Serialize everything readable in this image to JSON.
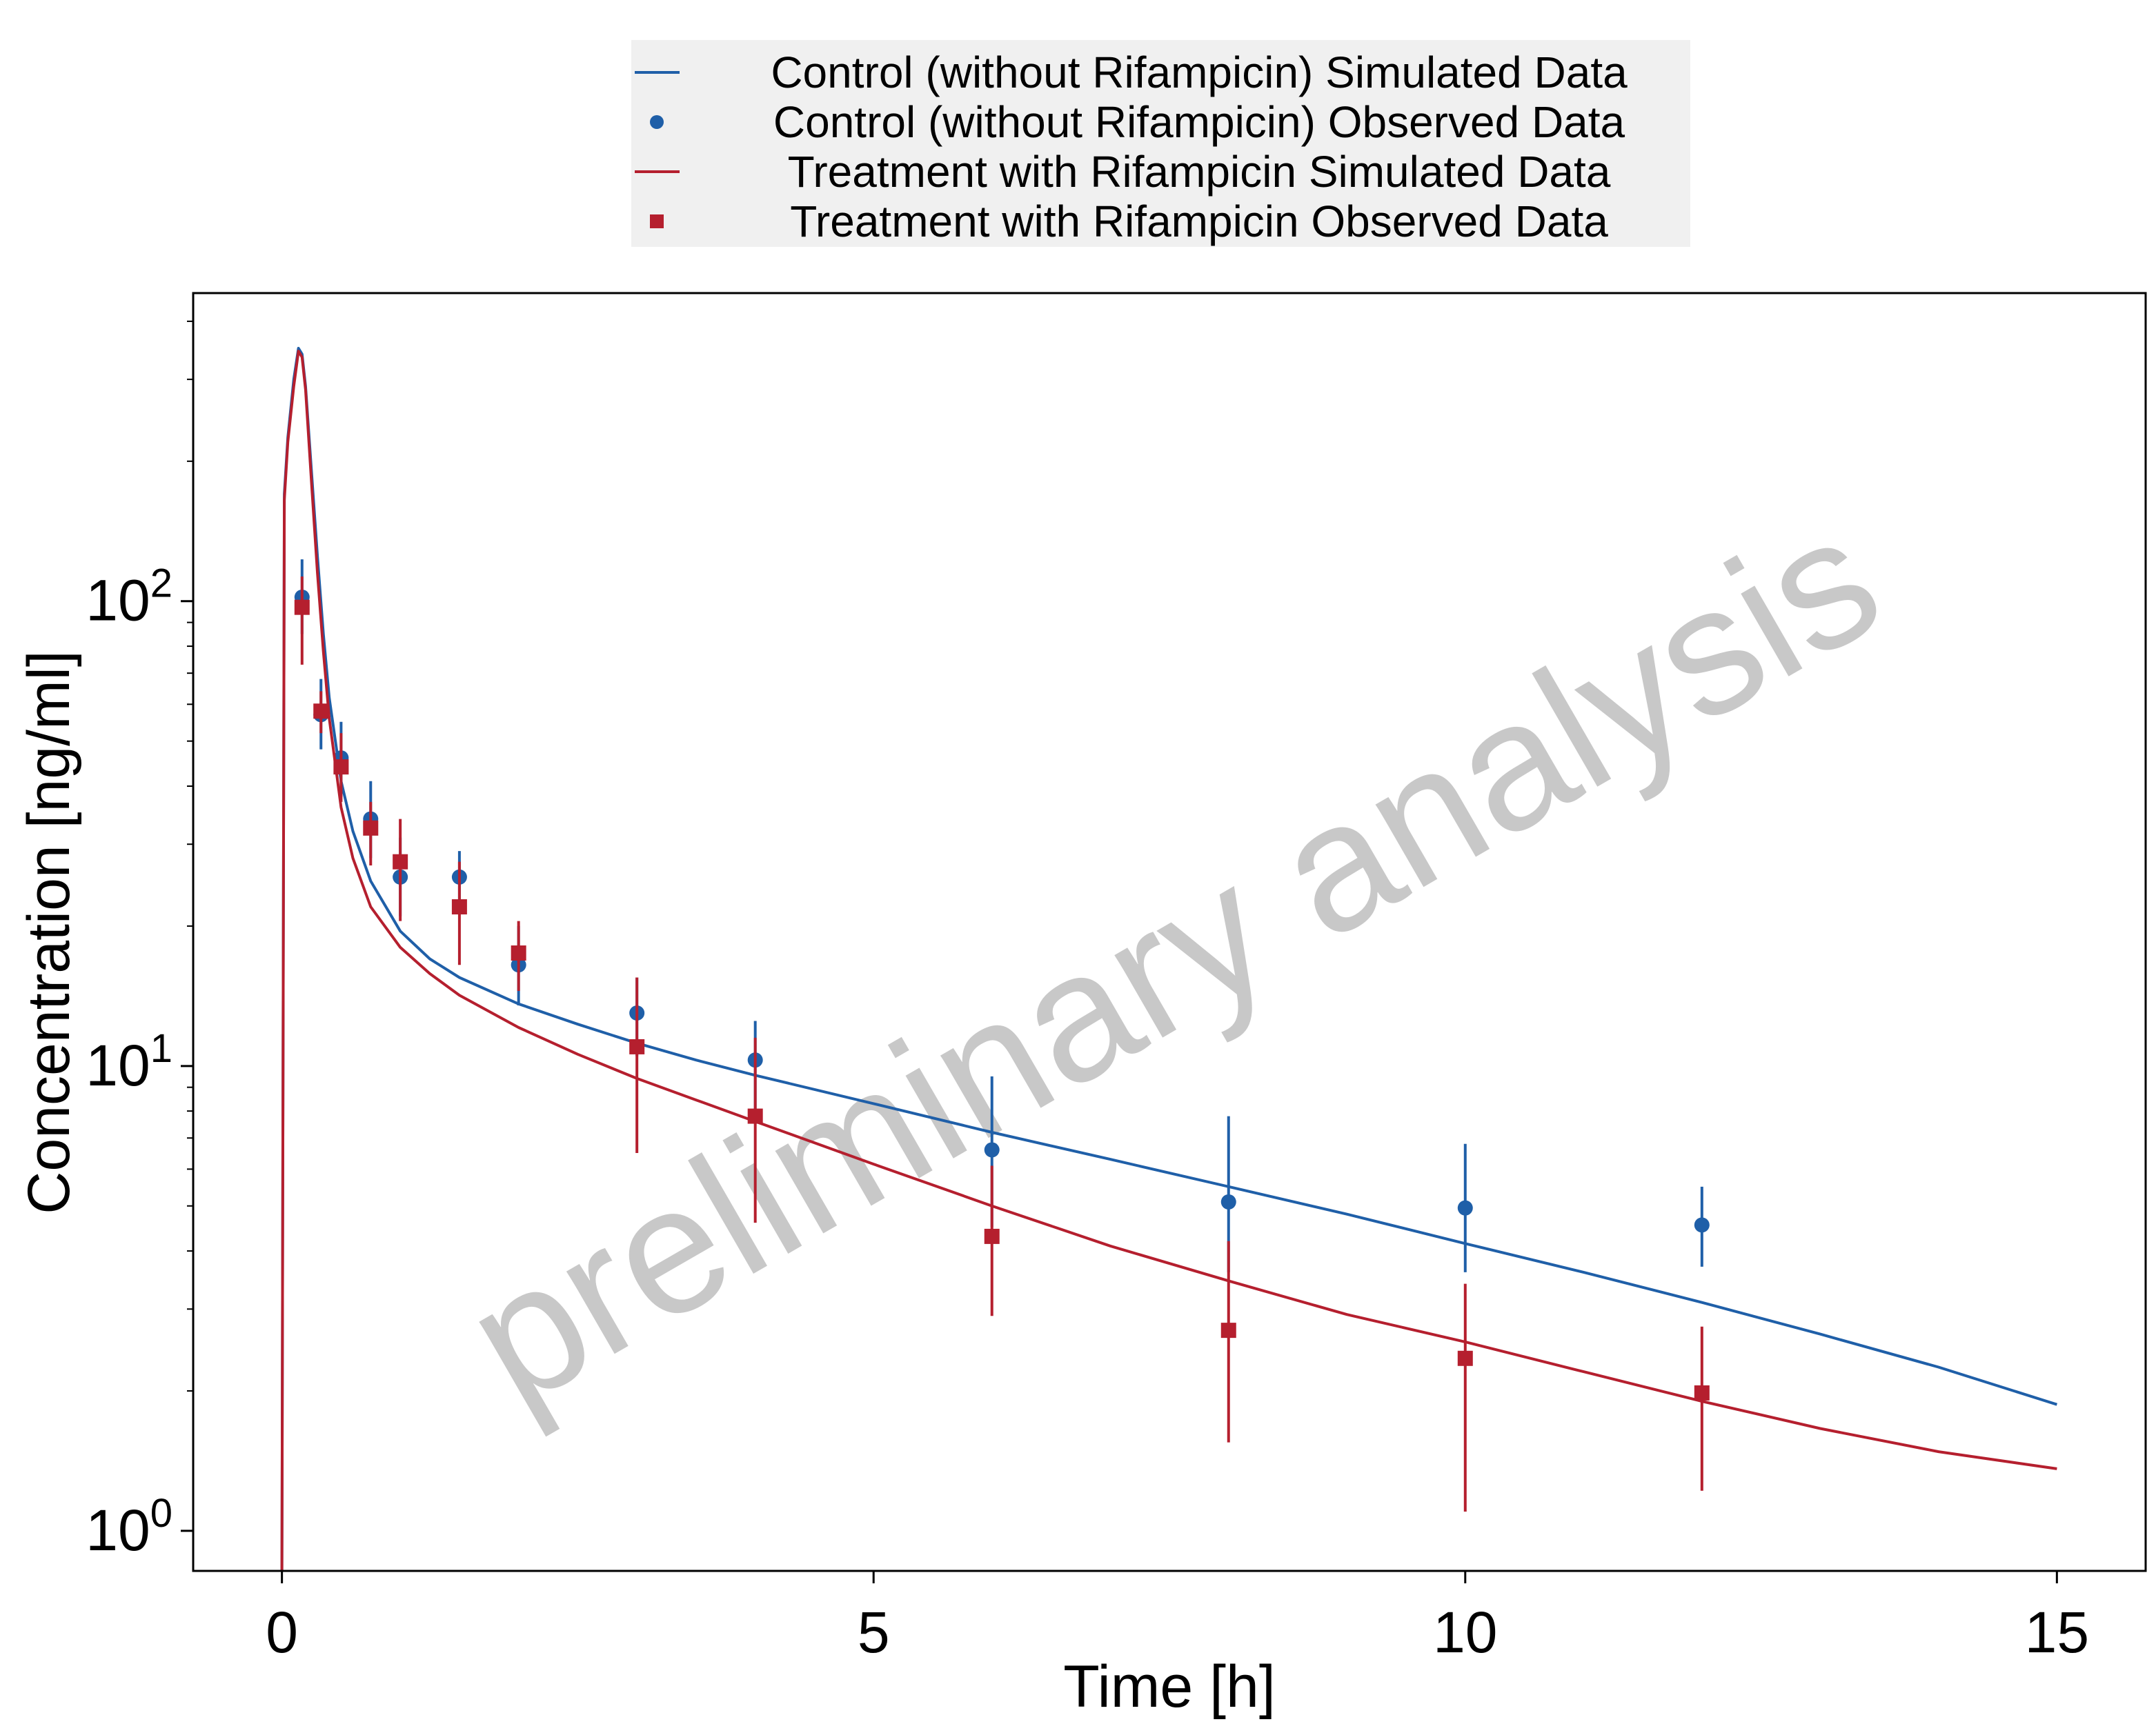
{
  "chart_data": {
    "type": "line",
    "xlabel": "Time [h]",
    "ylabel": "Concentration [ng/ml]",
    "xlim": [
      -0.75,
      15.75
    ],
    "ylim": [
      0.82,
      460
    ],
    "y_scale": "log",
    "grid": false,
    "legend_position": "top",
    "watermark": "preliminary analysis",
    "x_ticks": [
      0,
      5,
      10,
      15
    ],
    "x_tick_labels": [
      "0",
      "5",
      "10",
      "15"
    ],
    "y_ticks": [
      {
        "value": 1,
        "base": "10",
        "exp": "0"
      },
      {
        "value": 10,
        "base": "10",
        "exp": "1"
      },
      {
        "value": 100,
        "base": "10",
        "exp": "2"
      }
    ],
    "series": [
      {
        "name": "Control (without Rifampicin) Simulated Data",
        "kind": "line",
        "color": "#1f5fa8",
        "x": [
          0,
          0.02,
          0.05,
          0.1,
          0.14,
          0.17,
          0.2,
          0.25,
          0.3,
          0.35,
          0.4,
          0.5,
          0.6,
          0.75,
          1.0,
          1.25,
          1.5,
          2.0,
          2.5,
          3.0,
          3.5,
          4.0,
          5.0,
          6.0,
          7.0,
          8.0,
          9.0,
          10.0,
          11.0,
          12.0,
          13.0,
          14.0,
          15.0
        ],
        "y": [
          0.82,
          170,
          225,
          300,
          350,
          340,
          290,
          190,
          125,
          85,
          62,
          41,
          32,
          25,
          19.5,
          17.0,
          15.5,
          13.6,
          12.3,
          11.2,
          10.3,
          9.55,
          8.3,
          7.2,
          6.3,
          5.5,
          4.8,
          4.15,
          3.6,
          3.1,
          2.65,
          2.25,
          1.87
        ]
      },
      {
        "name": "Control (without Rifampicin) Observed Data",
        "kind": "scatter",
        "marker": "circle",
        "color": "#1f5fa8",
        "points": [
          {
            "x": 0.17,
            "y": 102,
            "lo": 85,
            "hi": 123
          },
          {
            "x": 0.33,
            "y": 57,
            "lo": 48,
            "hi": 68
          },
          {
            "x": 0.5,
            "y": 46,
            "lo": 38,
            "hi": 55
          },
          {
            "x": 0.75,
            "y": 34,
            "lo": 28,
            "hi": 41
          },
          {
            "x": 1.0,
            "y": 25.5,
            "lo": 21,
            "hi": 31
          },
          {
            "x": 1.5,
            "y": 25.5,
            "lo": 22,
            "hi": 29
          },
          {
            "x": 2.0,
            "y": 16.5,
            "lo": 13.5,
            "hi": 20
          },
          {
            "x": 3.0,
            "y": 13,
            "lo": 10.5,
            "hi": 15.5
          },
          {
            "x": 4.0,
            "y": 10.3,
            "lo": 8,
            "hi": 12.5
          },
          {
            "x": 6.0,
            "y": 6.6,
            "lo": 4.5,
            "hi": 9.5
          },
          {
            "x": 8.0,
            "y": 5.1,
            "lo": 3.6,
            "hi": 7.8
          },
          {
            "x": 10.0,
            "y": 4.95,
            "lo": 3.6,
            "hi": 6.8
          },
          {
            "x": 12.0,
            "y": 4.55,
            "lo": 3.7,
            "hi": 5.5
          }
        ]
      },
      {
        "name": "Treatment with Rifampicin Simulated Data",
        "kind": "line",
        "color": "#b51f2e",
        "x": [
          0,
          0.02,
          0.05,
          0.1,
          0.14,
          0.17,
          0.2,
          0.25,
          0.3,
          0.35,
          0.4,
          0.5,
          0.6,
          0.75,
          1.0,
          1.25,
          1.5,
          2.0,
          2.5,
          3.0,
          3.5,
          4.0,
          5.0,
          6.0,
          7.0,
          8.0,
          9.0,
          10.0,
          11.0,
          12.0,
          13.0,
          14.0,
          15.0
        ],
        "y": [
          0.82,
          165,
          220,
          290,
          345,
          335,
          285,
          180,
          115,
          78,
          56,
          36,
          28,
          22,
          18.0,
          15.8,
          14.2,
          12.1,
          10.6,
          9.4,
          8.45,
          7.6,
          6.15,
          5.0,
          4.1,
          3.45,
          2.92,
          2.55,
          2.2,
          1.9,
          1.66,
          1.48,
          1.36
        ]
      },
      {
        "name": "Treatment with Rifampicin Observed Data",
        "kind": "scatter",
        "marker": "square",
        "color": "#b51f2e",
        "points": [
          {
            "x": 0.17,
            "y": 97,
            "lo": 73,
            "hi": 113
          },
          {
            "x": 0.33,
            "y": 58,
            "lo": 52,
            "hi": 64
          },
          {
            "x": 0.5,
            "y": 44,
            "lo": 37,
            "hi": 52
          },
          {
            "x": 0.75,
            "y": 32.5,
            "lo": 27,
            "hi": 37
          },
          {
            "x": 1.0,
            "y": 27.5,
            "lo": 20.5,
            "hi": 34
          },
          {
            "x": 1.5,
            "y": 22,
            "lo": 16.5,
            "hi": 27.5
          },
          {
            "x": 2.0,
            "y": 17.5,
            "lo": 14.5,
            "hi": 20.5
          },
          {
            "x": 3.0,
            "y": 11,
            "lo": 6.5,
            "hi": 15.5
          },
          {
            "x": 4.0,
            "y": 7.8,
            "lo": 4.6,
            "hi": 11.5
          },
          {
            "x": 6.0,
            "y": 4.3,
            "lo": 2.9,
            "hi": 6.1
          },
          {
            "x": 8.0,
            "y": 2.7,
            "lo": 1.55,
            "hi": 4.2
          },
          {
            "x": 10.0,
            "y": 2.35,
            "lo": 1.1,
            "hi": 3.4
          },
          {
            "x": 12.0,
            "y": 1.98,
            "lo": 1.22,
            "hi": 2.75
          }
        ]
      }
    ]
  }
}
